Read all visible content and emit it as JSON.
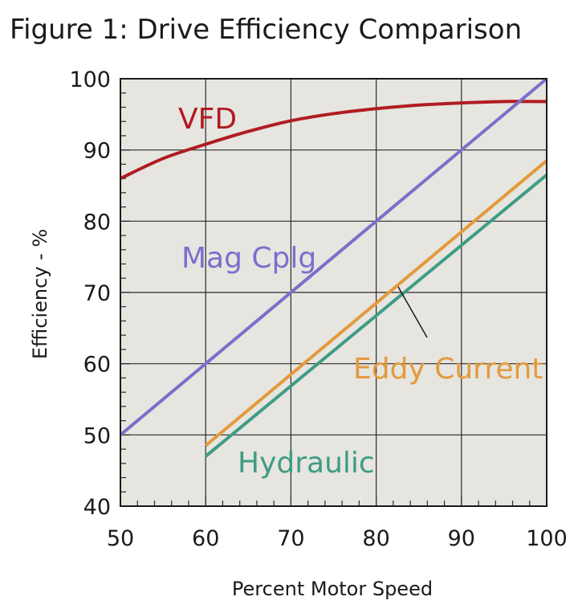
{
  "chart_data": {
    "type": "line",
    "title": "Figure 1:  Drive Efficiency Comparison",
    "xlabel": "Percent Motor Speed",
    "ylabel": "Efficiency - %",
    "xlim": [
      50,
      100
    ],
    "ylim": [
      40,
      100
    ],
    "xticks": [
      50,
      60,
      70,
      80,
      90,
      100
    ],
    "yticks": [
      40,
      50,
      60,
      70,
      80,
      90,
      100
    ],
    "grid": true,
    "legend": "inline labels",
    "background_color": "#e6e5e0",
    "series": [
      {
        "name": "VFD",
        "color": "#b01c22",
        "x": [
          50,
          55,
          60,
          65,
          70,
          75,
          80,
          85,
          90,
          95,
          100
        ],
        "y": [
          86,
          88.8,
          90.8,
          92.6,
          94.1,
          95.1,
          95.8,
          96.3,
          96.6,
          96.8,
          96.8
        ]
      },
      {
        "name": "Mag Cplg",
        "color": "#7b6fcc",
        "x": [
          50,
          100
        ],
        "y": [
          50,
          100
        ]
      },
      {
        "name": "Eddy Current",
        "color": "#e39a3c",
        "x": [
          60,
          100
        ],
        "y": [
          48.5,
          88.5
        ]
      },
      {
        "name": "Hydraulic",
        "color": "#3e9c84",
        "x": [
          60,
          100
        ],
        "y": [
          47,
          86.5
        ]
      }
    ]
  }
}
